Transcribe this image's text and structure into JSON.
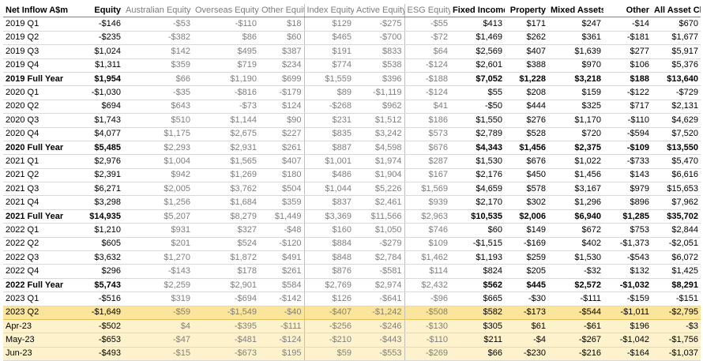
{
  "headers": [
    "Net Inflow A$m",
    "Equity",
    "Australian Equity",
    "Overseas Equity",
    "Other Equity",
    "Index Equity",
    "Active Equity",
    "ESG Equity",
    "Fixed Income",
    "Property",
    "Mixed Assets",
    "Other",
    "All Asset Classes"
  ],
  "rows": [
    {
      "kind": "q",
      "cells": [
        "2019 Q1",
        "-$146",
        "-$53",
        "-$110",
        "$18",
        "$129",
        "-$275",
        "-$55",
        "$413",
        "$171",
        "$247",
        "-$14",
        "$670"
      ]
    },
    {
      "kind": "q",
      "cells": [
        "2019 Q2",
        "-$235",
        "-$382",
        "$86",
        "$60",
        "$465",
        "-$700",
        "-$72",
        "$1,469",
        "$262",
        "$361",
        "-$181",
        "$1,677"
      ]
    },
    {
      "kind": "q",
      "cells": [
        "2019 Q3",
        "$1,024",
        "$142",
        "$495",
        "$387",
        "$191",
        "$833",
        "$64",
        "$2,569",
        "$407",
        "$1,639",
        "$277",
        "$5,917"
      ]
    },
    {
      "kind": "q",
      "cells": [
        "2019 Q4",
        "$1,311",
        "$359",
        "$719",
        "$234",
        "$774",
        "$538",
        "-$124",
        "$2,601",
        "$388",
        "$970",
        "$106",
        "$5,376"
      ]
    },
    {
      "kind": "fy",
      "cells": [
        "2019 Full Year",
        "$1,954",
        "$66",
        "$1,190",
        "$699",
        "$1,559",
        "$396",
        "-$188",
        "$7,052",
        "$1,228",
        "$3,218",
        "$188",
        "$13,640"
      ]
    },
    {
      "kind": "q",
      "cells": [
        "2020 Q1",
        "-$1,030",
        "-$35",
        "-$816",
        "-$179",
        "$89",
        "-$1,119",
        "-$124",
        "$55",
        "$208",
        "$159",
        "-$122",
        "-$729"
      ]
    },
    {
      "kind": "q",
      "cells": [
        "2020 Q2",
        "$694",
        "$643",
        "-$73",
        "$124",
        "-$268",
        "$962",
        "$41",
        "-$50",
        "$444",
        "$325",
        "$717",
        "$2,131"
      ]
    },
    {
      "kind": "q",
      "cells": [
        "2020 Q3",
        "$1,743",
        "$510",
        "$1,144",
        "$90",
        "$231",
        "$1,512",
        "$186",
        "$1,550",
        "$276",
        "$1,170",
        "-$110",
        "$4,629"
      ]
    },
    {
      "kind": "q",
      "cells": [
        "2020 Q4",
        "$4,077",
        "$1,175",
        "$2,675",
        "$227",
        "$835",
        "$3,242",
        "$573",
        "$2,789",
        "$528",
        "$720",
        "-$594",
        "$7,520"
      ]
    },
    {
      "kind": "fy",
      "cells": [
        "2020 Full Year",
        "$5,485",
        "$2,293",
        "$2,931",
        "$261",
        "$887",
        "$4,598",
        "$676",
        "$4,343",
        "$1,456",
        "$2,375",
        "-$109",
        "$13,550"
      ]
    },
    {
      "kind": "q",
      "cells": [
        "2021 Q1",
        "$2,976",
        "$1,004",
        "$1,565",
        "$407",
        "$1,001",
        "$1,974",
        "$287",
        "$1,530",
        "$676",
        "$1,022",
        "-$733",
        "$5,470"
      ]
    },
    {
      "kind": "q",
      "cells": [
        "2021 Q2",
        "$2,391",
        "$942",
        "$1,269",
        "$180",
        "$486",
        "$1,904",
        "$167",
        "$2,176",
        "$450",
        "$1,456",
        "$143",
        "$6,616"
      ]
    },
    {
      "kind": "q",
      "cells": [
        "2021 Q3",
        "$6,271",
        "$2,005",
        "$3,762",
        "$504",
        "$1,044",
        "$5,226",
        "$1,569",
        "$4,659",
        "$578",
        "$3,167",
        "$979",
        "$15,653"
      ]
    },
    {
      "kind": "q",
      "cells": [
        "2021 Q4",
        "$3,298",
        "$1,256",
        "$1,684",
        "$359",
        "$837",
        "$2,461",
        "$939",
        "$2,170",
        "$302",
        "$1,296",
        "$896",
        "$7,962"
      ]
    },
    {
      "kind": "fy",
      "cells": [
        "2021 Full Year",
        "$14,935",
        "$5,207",
        "$8,279",
        "$1,449",
        "$3,369",
        "$11,566",
        "$2,963",
        "$10,535",
        "$2,006",
        "$6,940",
        "$1,285",
        "$35,702"
      ]
    },
    {
      "kind": "q",
      "cells": [
        "2022 Q1",
        "$1,210",
        "$931",
        "$327",
        "-$48",
        "$160",
        "$1,050",
        "$746",
        "$60",
        "$149",
        "$672",
        "$753",
        "$2,844"
      ]
    },
    {
      "kind": "q",
      "cells": [
        "2022 Q2",
        "$605",
        "$201",
        "$524",
        "-$120",
        "$884",
        "-$279",
        "$109",
        "-$1,515",
        "-$169",
        "$402",
        "-$1,373",
        "-$2,051"
      ]
    },
    {
      "kind": "q",
      "cells": [
        "2022 Q3",
        "$3,632",
        "$1,270",
        "$1,872",
        "$491",
        "$848",
        "$2,784",
        "$1,462",
        "$1,193",
        "$259",
        "$1,530",
        "-$543",
        "$6,072"
      ]
    },
    {
      "kind": "q",
      "cells": [
        "2022 Q4",
        "$296",
        "-$143",
        "$178",
        "$261",
        "$876",
        "-$581",
        "$114",
        "$824",
        "$205",
        "-$32",
        "$132",
        "$1,425"
      ]
    },
    {
      "kind": "fy",
      "cells": [
        "2022 Full Year",
        "$5,743",
        "$2,259",
        "$2,901",
        "$584",
        "$2,769",
        "$2,974",
        "$2,432",
        "$562",
        "$445",
        "$2,572",
        "-$1,032",
        "$8,291"
      ]
    },
    {
      "kind": "q",
      "cells": [
        "2023 Q1",
        "-$516",
        "$319",
        "-$694",
        "-$142",
        "$126",
        "-$641",
        "-$96",
        "$665",
        "-$30",
        "-$111",
        "-$159",
        "-$151"
      ]
    },
    {
      "kind": "hl",
      "cells": [
        "2023 Q2",
        "-$1,649",
        "-$59",
        "-$1,549",
        "-$40",
        "-$407",
        "-$1,242",
        "-$508",
        "$582",
        "-$173",
        "-$544",
        "-$1,011",
        "-$2,795"
      ]
    },
    {
      "kind": "mo",
      "cells": [
        "Apr-23",
        "-$502",
        "$4",
        "-$395",
        "-$111",
        "-$256",
        "-$246",
        "-$130",
        "$305",
        "$61",
        "-$61",
        "$196",
        "-$3"
      ]
    },
    {
      "kind": "mo",
      "cells": [
        "May-23",
        "-$653",
        "-$47",
        "-$481",
        "-$124",
        "-$210",
        "-$443",
        "-$110",
        "$211",
        "-$4",
        "-$267",
        "-$1,042",
        "-$1,756"
      ]
    },
    {
      "kind": "mo",
      "cells": [
        "Jun-23",
        "-$493",
        "-$15",
        "-$673",
        "$195",
        "$59",
        "-$553",
        "-$269",
        "$66",
        "-$230",
        "-$216",
        "-$164",
        "-$1,037"
      ]
    }
  ],
  "colors": {
    "highlight": "#fbe59a",
    "month_band": "#fdf2cc",
    "sub_text": "#7f7f7f",
    "grid": "#d9d9d9"
  }
}
